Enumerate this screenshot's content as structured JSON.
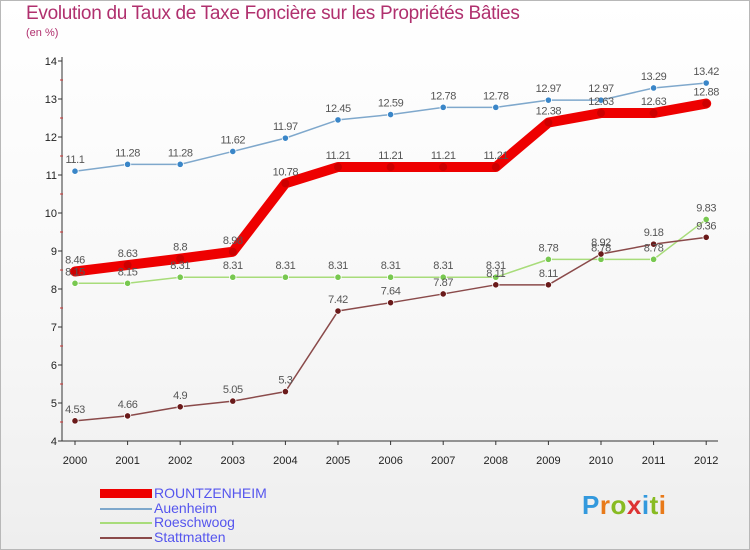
{
  "title": "Evolution du Taux de Taxe Foncière sur les Propriétés Bâties",
  "subtitle": "(en %)",
  "logo": {
    "letters": [
      "P",
      "r",
      "o",
      "x",
      "i",
      "t",
      "i"
    ],
    "colors": [
      "#3399dd",
      "#e87a1a",
      "#88bb22",
      "#dd3333",
      "#3399dd",
      "#88bb22",
      "#e87a1a"
    ]
  },
  "chart_data": {
    "type": "line",
    "title": "Evolution du Taux de Taxe Foncière sur les Propriétés Bâties",
    "ylabel": "(en %)",
    "xlabel": "",
    "ylim": [
      4,
      14
    ],
    "yticks": [
      "4",
      "5",
      "6",
      "7",
      "8",
      "9",
      "10",
      "11",
      "12",
      "13",
      "14"
    ],
    "categories": [
      "2000",
      "2001",
      "2002",
      "2003",
      "2004",
      "2005",
      "2006",
      "2007",
      "2008",
      "2009",
      "2010",
      "2011",
      "2012"
    ],
    "grid": false,
    "legend_position": "bottom-left",
    "series": [
      {
        "name": "Auenheim",
        "color": "#7fa8cc",
        "marker_color": "#3a86c8",
        "values": [
          11.1,
          11.28,
          11.28,
          11.62,
          11.97,
          12.45,
          12.59,
          12.78,
          12.78,
          12.97,
          12.97,
          13.29,
          13.42
        ],
        "labels": [
          "11.1",
          "11.28",
          "11.28",
          "11.62",
          "11.97",
          "12.45",
          "12.59",
          "12.78",
          "12.78",
          "12.97",
          "12.97",
          "13.29",
          "13.42"
        ]
      },
      {
        "name": "Roeschwoog",
        "color": "#a8dc7a",
        "marker_color": "#78c850",
        "values": [
          8.15,
          8.15,
          8.31,
          8.31,
          8.31,
          8.31,
          8.31,
          8.31,
          8.31,
          8.78,
          8.78,
          8.78,
          9.83
        ],
        "labels": [
          "8.15",
          "8.15",
          "8.31",
          "8.31",
          "8.31",
          "8.31",
          "8.31",
          "8.31",
          "8.31",
          "8.78",
          "8.78",
          "8.78",
          "9.83"
        ]
      },
      {
        "name": "Stattmatten",
        "color": "#8a4a4a",
        "marker_color": "#6a1a1a",
        "values": [
          4.53,
          4.66,
          4.9,
          5.05,
          5.3,
          7.42,
          7.64,
          7.87,
          8.11,
          8.11,
          8.92,
          9.18,
          9.36
        ],
        "labels": [
          "4.53",
          "4.66",
          "4.9",
          "5.05",
          "5.3",
          "7.42",
          "7.64",
          "7.87",
          "8.11",
          "8.11",
          "8.92",
          "9.18",
          "9.36"
        ]
      },
      {
        "name": "ROUNTZENHEIM",
        "color": "#ee0000",
        "marker_color": "#ee0000",
        "values": [
          8.46,
          8.63,
          8.8,
          8.98,
          10.78,
          11.21,
          11.21,
          11.21,
          11.21,
          12.38,
          12.63,
          12.63,
          12.88
        ],
        "labels": [
          "8.46",
          "8.63",
          "8.8",
          "8.98",
          "10.78",
          "11.21",
          "11.21",
          "11.21",
          "11.21",
          "12.38",
          "12.63",
          "12.63",
          "12.88"
        ]
      }
    ],
    "legend_order": [
      "ROUNTZENHEIM",
      "Auenheim",
      "Roeschwoog",
      "Stattmatten"
    ]
  }
}
